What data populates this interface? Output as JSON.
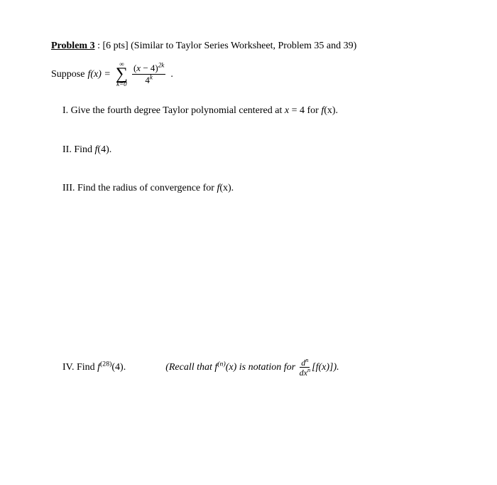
{
  "header": {
    "problem_label": "Problem 3",
    "points_and_note": " : [6 pts] (Similar to Taylor Series Worksheet, Problem 35 and 39)"
  },
  "suppose": {
    "prefix": "Suppose ",
    "lhs": "f(x) = ",
    "sigma_top": "∞",
    "sigma_symbol": "∑",
    "sigma_bottom": "k=0",
    "frac_num_open": "(",
    "frac_num_var": "x",
    "frac_num_rest": " − 4)",
    "frac_num_exp": "2k",
    "frac_den_base": "4",
    "frac_den_exp": "k",
    "trail": " ."
  },
  "parts": {
    "i": {
      "label": "I. ",
      "text_a": "Give the fourth degree Taylor polynomial centered at ",
      "text_b": "x",
      "text_c": " = 4 for ",
      "text_d": "f(x).",
      "fx_f": "f",
      "fx_rest": "(x)."
    },
    "ii": {
      "label": "II. ",
      "text_a": "Find ",
      "fx_f": "f",
      "fx_rest": "(4)."
    },
    "iii": {
      "label": "III. ",
      "text_a": "Find the radius of convergence for ",
      "fx_f": "f",
      "fx_rest": "(x)."
    },
    "iv": {
      "label": "IV. ",
      "text_a": "Find ",
      "fx_f": "f",
      "fx_sup": "(28)",
      "fx_rest": "(4).",
      "recall_a": "(Recall that ",
      "recall_fn_f": "f",
      "recall_fn_sup": "(n)",
      "recall_fn_rest": "(x)",
      "recall_b": " is notation for ",
      "frac_num_d": "d",
      "frac_num_exp": "n",
      "frac_den_d": "dx",
      "frac_den_exp": "n",
      "recall_c": "[",
      "recall_fx_f": "f",
      "recall_fx_rest": "(x)]).",
      "recall_close": ""
    }
  }
}
